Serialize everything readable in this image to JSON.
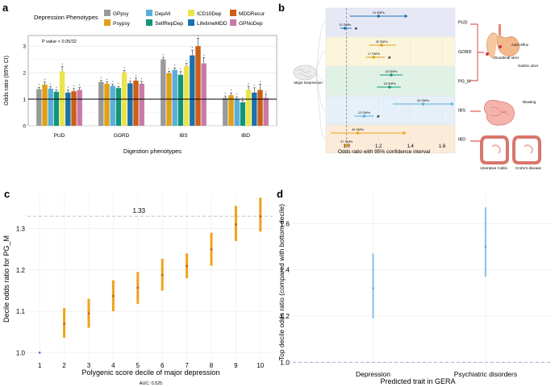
{
  "panel_labels": [
    "a",
    "b",
    "c",
    "d"
  ],
  "colors": {
    "GPpsy": "#9a9a9a",
    "Psypsy": "#e0a015",
    "DepAll": "#5aaed9",
    "SelfRepDep": "#11957a",
    "ICD10Dep": "#ece34a",
    "LifetimeMDD": "#1a72ad",
    "MDDRecur": "#cc5f14",
    "GPNoDep": "#c87aa6",
    "orange": "#f0a21a",
    "blue": "#8fc6e6",
    "pud": "#e7e8f6",
    "gord": "#fbf5dc",
    "pgm": "#e0f2e6",
    "ibs": "#e5f0f8",
    "ibd": "#fcebd9"
  },
  "chart_data": [
    {
      "id": "a",
      "type": "bar",
      "legend_title": "Depression Phenotypes",
      "legend": [
        "GPpsy",
        "DepAll",
        "ICD10Dep",
        "MDDRecur",
        "Psypsy",
        "SelfRepDep",
        "LifetimeMDD",
        "GPNoDep"
      ],
      "series_names": [
        "GPpsy",
        "Psypsy",
        "DepAll",
        "SelfRepDep",
        "ICD10Dep",
        "LifetimeMDD",
        "MDDRecur",
        "GPNoDep"
      ],
      "categories": [
        "PUD",
        "GORD",
        "IBS",
        "IBD"
      ],
      "values": [
        [
          1.38,
          1.55,
          1.4,
          1.28,
          2.05,
          1.25,
          1.3,
          1.35
        ],
        [
          1.65,
          1.58,
          1.5,
          1.42,
          2.0,
          1.6,
          1.7,
          1.58
        ],
        [
          2.5,
          1.98,
          2.1,
          1.92,
          2.25,
          2.65,
          3.0,
          2.35
        ],
        [
          1.05,
          1.15,
          1.02,
          0.88,
          1.35,
          1.25,
          1.35,
          1.05
        ]
      ],
      "err": [
        [
          0.07,
          0.1,
          0.07,
          0.07,
          0.18,
          0.1,
          0.1,
          0.09
        ],
        [
          0.06,
          0.07,
          0.06,
          0.06,
          0.09,
          0.08,
          0.1,
          0.09
        ],
        [
          0.08,
          0.07,
          0.08,
          0.12,
          0.1,
          0.2,
          0.3,
          0.22
        ],
        [
          0.07,
          0.09,
          0.07,
          0.07,
          0.14,
          0.18,
          0.22,
          0.14
        ]
      ],
      "ylim": [
        0,
        3.4
      ],
      "yticks": [
        0,
        1,
        2,
        3
      ],
      "reference_line": 1,
      "xlabel": "Digestion phenotypes",
      "ylabel": "Odds ratio (95% CI)",
      "annotation": "P value < 0.05/32"
    },
    {
      "id": "b",
      "type": "scatter",
      "xlabel": "Odds ratio with 95% confidence interval",
      "xticks": [
        1.0,
        1.2,
        1.4,
        1.6
      ],
      "xlim": [
        0.87,
        1.68
      ],
      "reference_line": 1.0,
      "center_label": "Major Depression",
      "bands": [
        "PUD",
        "GORD",
        "PG_M",
        "IBS",
        "IBD"
      ],
      "points": [
        {
          "band": "PUD",
          "label": "13 SNPs",
          "or": 1.2,
          "lo": 1.02,
          "hi": 1.37,
          "color": "#1a72ad",
          "arrow": true
        },
        {
          "band": "PUD",
          "label": "13 SNPs",
          "or": 0.99,
          "lo": 0.96,
          "hi": 1.03,
          "color": "#1a72ad",
          "arrow": false,
          "r_mark": "R"
        },
        {
          "band": "GORD",
          "label": "32 SNPs",
          "or": 1.22,
          "lo": 1.14,
          "hi": 1.31,
          "color": "#e0a015",
          "arrow": false
        },
        {
          "band": "GORD",
          "label": "17 SNPs",
          "or": 1.17,
          "lo": 1.12,
          "hi": 1.24,
          "color": "#e0a015",
          "arrow": false,
          "r_mark": "R"
        },
        {
          "band": "PG_M",
          "label": "33 SNPs",
          "or": 1.28,
          "lo": 1.21,
          "hi": 1.35,
          "color": "#11957a",
          "arrow": false
        },
        {
          "band": "PG_M",
          "label": "18 SNPs",
          "or": 1.27,
          "lo": 1.19,
          "hi": 1.34,
          "color": "#11957a",
          "arrow": false
        },
        {
          "band": "IBS",
          "label": "33 SNPs",
          "or": 1.48,
          "lo": 1.29,
          "hi": 1.66,
          "color": "#5aaed9",
          "arrow": true
        },
        {
          "band": "IBS",
          "label": "12 SNPs",
          "or": 1.11,
          "lo": 1.05,
          "hi": 1.17,
          "color": "#5aaed9",
          "arrow": false,
          "r_mark": "R"
        },
        {
          "band": "IBD",
          "label": "40 SNPs",
          "or": 1.07,
          "lo": 0.9,
          "hi": 1.36,
          "color": "#f0a21a",
          "arrow": true
        },
        {
          "band": "IBD",
          "label": "37 SNPs",
          "or": 1.0,
          "lo": 0.98,
          "hi": 1.02,
          "color": "#f0a21a",
          "arrow": false
        }
      ],
      "illustrations": [
        "Acid reflux",
        "Duodenal ulcer",
        "Gastric ulcer",
        "Bloating",
        "Ulcerative Colitis",
        "Crohn's disease"
      ]
    },
    {
      "id": "c",
      "type": "scatter",
      "x": [
        1,
        2,
        3,
        4,
        5,
        6,
        7,
        8,
        9,
        10
      ],
      "y": [
        1.0,
        1.07,
        1.095,
        1.137,
        1.157,
        1.188,
        1.21,
        1.25,
        1.31,
        1.33
      ],
      "lo": [
        1.0,
        1.036,
        1.06,
        1.1,
        1.118,
        1.15,
        1.18,
        1.21,
        1.27,
        1.293
      ],
      "hi": [
        1.0,
        1.108,
        1.13,
        1.175,
        1.195,
        1.227,
        1.24,
        1.29,
        1.355,
        1.375
      ],
      "xlabel": "Polygenic score decile of major depression",
      "ylabel": "Decile odds ratio for PG_M",
      "xticks": [
        1,
        2,
        3,
        4,
        5,
        6,
        7,
        8,
        9,
        10
      ],
      "yticks": [
        1.0,
        1.1,
        1.2,
        1.3
      ],
      "ylim": [
        0.985,
        1.385
      ],
      "xlim": [
        0.5,
        10.5
      ],
      "reference_line": 1.33,
      "reference_label": "1.33",
      "caption": "AUC: 0.525"
    },
    {
      "id": "d",
      "type": "scatter",
      "categories": [
        "Depression",
        "Psychiatric disorders"
      ],
      "y": [
        1.32,
        1.5
      ],
      "lo": [
        1.19,
        1.37
      ],
      "hi": [
        1.47,
        1.67
      ],
      "xlabel": "Predicted trait in GERA",
      "ylabel": "Top decile odds ratio (compared with bottom decile)",
      "yticks": [
        1.0,
        1.2,
        1.4,
        1.6
      ],
      "ylim": [
        0.98,
        1.73
      ],
      "reference_line": 1.0
    }
  ]
}
